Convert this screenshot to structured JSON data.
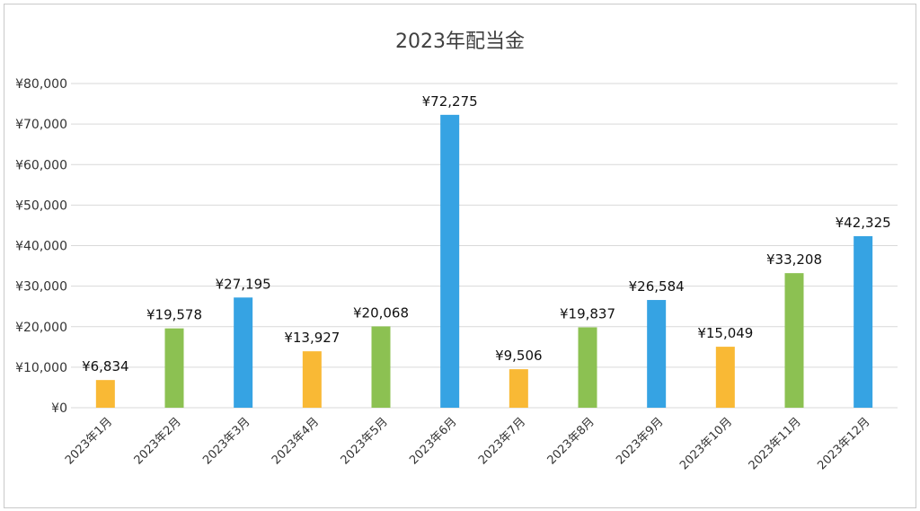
{
  "chart_data": {
    "type": "bar",
    "title": "2023年配当金",
    "categories": [
      "2023年1月",
      "2023年2月",
      "2023年3月",
      "2023年4月",
      "2023年5月",
      "2023年6月",
      "2023年7月",
      "2023年8月",
      "2023年9月",
      "2023年10月",
      "2023年11月",
      "2023年12月"
    ],
    "values": [
      6834,
      19578,
      27195,
      13927,
      20068,
      72275,
      9506,
      19837,
      26584,
      15049,
      33208,
      42325
    ],
    "data_labels": [
      "¥6,834",
      "¥19,578",
      "¥27,195",
      "¥13,927",
      "¥20,068",
      "¥72,275",
      "¥9,506",
      "¥19,837",
      "¥26,584",
      "¥15,049",
      "¥33,208",
      "¥42,325"
    ],
    "bar_colors": [
      "#F9B935",
      "#8CC152",
      "#36A3E3",
      "#F9B935",
      "#8CC152",
      "#36A3E3",
      "#F9B935",
      "#8CC152",
      "#36A3E3",
      "#F9B935",
      "#8CC152",
      "#36A3E3"
    ],
    "ylim": [
      0,
      80000
    ],
    "yticks": [
      0,
      10000,
      20000,
      30000,
      40000,
      50000,
      60000,
      70000,
      80000
    ],
    "ytick_labels": [
      "¥0",
      "¥10,000",
      "¥20,000",
      "¥30,000",
      "¥40,000",
      "¥50,000",
      "¥60,000",
      "¥70,000",
      "¥80,000"
    ],
    "grid": true,
    "legend": "none",
    "xlabel": "",
    "ylabel": ""
  }
}
